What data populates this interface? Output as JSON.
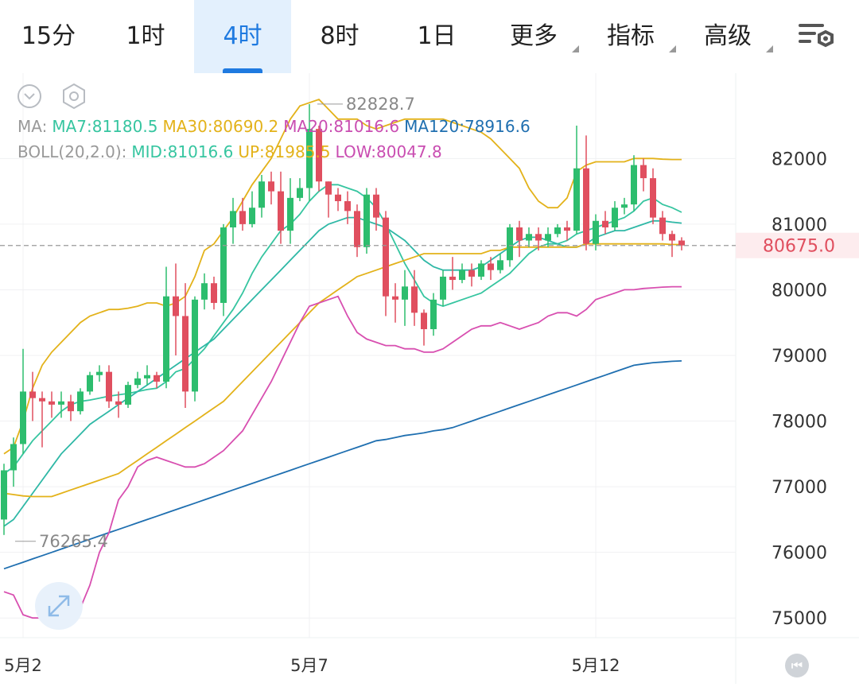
{
  "tabs": [
    {
      "label": "15分",
      "active": false,
      "dropdown": false
    },
    {
      "label": "1时",
      "active": false,
      "dropdown": false
    },
    {
      "label": "4时",
      "active": true,
      "dropdown": false
    },
    {
      "label": "8时",
      "active": false,
      "dropdown": false
    },
    {
      "label": "1日",
      "active": false,
      "dropdown": false
    },
    {
      "label": "更多",
      "active": false,
      "dropdown": true
    },
    {
      "label": "指标",
      "active": false,
      "dropdown": true
    },
    {
      "label": "高级",
      "active": false,
      "dropdown": true
    }
  ],
  "settings_icon": "chart-settings-icon",
  "legend": {
    "ma_prefix": "MA:",
    "ma7": "MA7:81180.5",
    "ma30": "MA30:80690.2",
    "ma20": "MA20:81016.6",
    "ma120": "MA120:78916.6",
    "boll_prefix": "BOLL(20,2.0):",
    "boll_mid": "MID:81016.6",
    "boll_up": "UP:81985.5",
    "boll_low": "LOW:80047.8"
  },
  "colors": {
    "up": "#2dbd6e",
    "down": "#e04f5f",
    "ma7": "#36c5a0",
    "ma30": "#e3b21a",
    "ma20": "#2fb8a6",
    "ma120": "#1f6fb0",
    "boll_low": "#d84fb0",
    "boll_up": "#e3b21a",
    "current_price_bg": "#fdecee",
    "current_price_text": "#e04f5f"
  },
  "chart_data": {
    "type": "candlestick",
    "interval": "4时",
    "ylim": [
      74700,
      83300
    ],
    "y_ticks": [
      75000,
      76000,
      77000,
      78000,
      79000,
      80000,
      81000,
      82000
    ],
    "x_ticks": [
      {
        "label": "5月2",
        "index": 2
      },
      {
        "label": "5月7",
        "index": 32
      },
      {
        "label": "5月12",
        "index": 62
      }
    ],
    "current_price": "80675.0",
    "current_price_value": 80675,
    "max_label": "82828.7",
    "max_index": 32,
    "min_label": "76265.4",
    "min_index": 0,
    "candles": [
      [
        76500,
        77250,
        76265,
        77350
      ],
      [
        77250,
        77650,
        77000,
        77750
      ],
      [
        77650,
        78450,
        77500,
        79100
      ],
      [
        78450,
        78350,
        78000,
        78750
      ],
      [
        78350,
        78300,
        77600,
        78450
      ],
      [
        78300,
        78250,
        78050,
        78450
      ],
      [
        78250,
        78300,
        78050,
        78450
      ],
      [
        78300,
        78150,
        78000,
        78400
      ],
      [
        78150,
        78450,
        78100,
        78500
      ],
      [
        78450,
        78700,
        78400,
        78750
      ],
      [
        78700,
        78750,
        78600,
        78850
      ],
      [
        78750,
        78300,
        78200,
        78850
      ],
      [
        78300,
        78250,
        78050,
        78450
      ],
      [
        78250,
        78550,
        78200,
        78600
      ],
      [
        78550,
        78650,
        78500,
        78750
      ],
      [
        78650,
        78700,
        78550,
        78850
      ],
      [
        78700,
        78600,
        78500,
        78750
      ],
      [
        78600,
        79900,
        78500,
        80350
      ],
      [
        79900,
        79600,
        79000,
        80400
      ],
      [
        79600,
        78450,
        78200,
        80100
      ],
      [
        78450,
        79850,
        78300,
        79900
      ],
      [
        79850,
        80100,
        79700,
        80250
      ],
      [
        80100,
        79800,
        79700,
        80200
      ],
      [
        79800,
        80950,
        79600,
        81000
      ],
      [
        80950,
        81200,
        80700,
        81400
      ],
      [
        81200,
        81000,
        80900,
        81400
      ],
      [
        81000,
        81250,
        80950,
        81500
      ],
      [
        81250,
        81650,
        81100,
        81750
      ],
      [
        81650,
        81500,
        81300,
        81800
      ],
      [
        81500,
        80900,
        80700,
        81800
      ],
      [
        80900,
        81400,
        80700,
        81700
      ],
      [
        81400,
        81550,
        81350,
        81700
      ],
      [
        81550,
        82450,
        81350,
        82828
      ],
      [
        82450,
        81650,
        81500,
        82500
      ],
      [
        81650,
        81450,
        81100,
        81650
      ],
      [
        81450,
        81350,
        81200,
        81550
      ],
      [
        81350,
        81200,
        81000,
        81500
      ],
      [
        81200,
        80650,
        80500,
        81300
      ],
      [
        80650,
        81450,
        80550,
        81550
      ],
      [
        81450,
        81100,
        80900,
        81550
      ],
      [
        81100,
        79900,
        79600,
        81200
      ],
      [
        79900,
        79850,
        79500,
        80100
      ],
      [
        79850,
        80050,
        79450,
        80300
      ],
      [
        80050,
        79650,
        79450,
        80300
      ],
      [
        79650,
        79400,
        79150,
        79700
      ],
      [
        79400,
        79850,
        79300,
        79950
      ],
      [
        79850,
        80200,
        79750,
        80300
      ],
      [
        80200,
        80150,
        80000,
        80500
      ],
      [
        80150,
        80300,
        80100,
        80400
      ],
      [
        80300,
        80200,
        80050,
        80400
      ],
      [
        80200,
        80400,
        80150,
        80450
      ],
      [
        80400,
        80300,
        80150,
        80500
      ],
      [
        80300,
        80450,
        80250,
        80550
      ],
      [
        80450,
        80950,
        80350,
        81000
      ],
      [
        80950,
        80750,
        80500,
        81050
      ],
      [
        80750,
        80850,
        80650,
        80950
      ],
      [
        80850,
        80750,
        80600,
        80950
      ],
      [
        80750,
        80850,
        80650,
        80950
      ],
      [
        80850,
        80950,
        80800,
        81000
      ],
      [
        80950,
        80900,
        80750,
        81050
      ],
      [
        80900,
        81850,
        80850,
        82500
      ],
      [
        81850,
        80700,
        80600,
        82350
      ],
      [
        80700,
        81050,
        80600,
        81150
      ],
      [
        81050,
        80950,
        80850,
        81200
      ],
      [
        80950,
        81250,
        80900,
        81350
      ],
      [
        81250,
        81300,
        81150,
        81400
      ],
      [
        81300,
        81900,
        81200,
        82050
      ],
      [
        81900,
        81700,
        81500,
        82000
      ],
      [
        81700,
        81100,
        81000,
        81850
      ],
      [
        81100,
        80850,
        80750,
        81200
      ],
      [
        80850,
        80750,
        80500,
        80900
      ],
      [
        80750,
        80675,
        80600,
        80800
      ]
    ],
    "series": [
      {
        "name": "MA7",
        "values": [
          77200,
          77300,
          77500,
          77700,
          77850,
          78000,
          78150,
          78250,
          78300,
          78320,
          78350,
          78380,
          78400,
          78420,
          78450,
          78480,
          78500,
          78600,
          78750,
          78800,
          78950,
          79100,
          79300,
          79500,
          79700,
          79950,
          80250,
          80500,
          80700,
          80900,
          81000,
          81150,
          81350,
          81500,
          81600,
          81600,
          81550,
          81500,
          81400,
          81250,
          81000,
          80700,
          80400,
          80150,
          79900,
          79800,
          79750,
          79800,
          79850,
          79900,
          79950,
          80050,
          80150,
          80250,
          80400,
          80550,
          80650,
          80700,
          80700,
          80750,
          80850,
          80900,
          80950,
          81000,
          81050,
          81100,
          81200,
          81350,
          81400,
          81300,
          81250,
          81180
        ]
      },
      {
        "name": "MA20",
        "values": [
          76400,
          76500,
          76700,
          76900,
          77100,
          77300,
          77500,
          77650,
          77800,
          77950,
          78050,
          78150,
          78250,
          78350,
          78450,
          78550,
          78650,
          78750,
          78850,
          78950,
          79050,
          79150,
          79250,
          79400,
          79550,
          79700,
          79850,
          80000,
          80150,
          80300,
          80450,
          80600,
          80750,
          80900,
          81000,
          81050,
          81100,
          81100,
          81050,
          81000,
          80950,
          80850,
          80750,
          80600,
          80450,
          80350,
          80300,
          80300,
          80300,
          80300,
          80350,
          80450,
          80550,
          80650,
          80750,
          80800,
          80800,
          80750,
          80700,
          80650,
          80650,
          80700,
          80800,
          80850,
          80900,
          80900,
          80950,
          81000,
          81050,
          81050,
          81030,
          81016
        ]
      },
      {
        "name": "MA30",
        "values": [
          76900,
          76880,
          76860,
          76850,
          76850,
          76850,
          76900,
          76950,
          77000,
          77050,
          77100,
          77150,
          77200,
          77300,
          77400,
          77500,
          77600,
          77700,
          77800,
          77900,
          78000,
          78100,
          78200,
          78300,
          78450,
          78600,
          78750,
          78900,
          79050,
          79200,
          79350,
          79500,
          79650,
          79800,
          79900,
          80000,
          80100,
          80200,
          80250,
          80300,
          80350,
          80400,
          80450,
          80500,
          80550,
          80550,
          80550,
          80550,
          80550,
          80550,
          80550,
          80600,
          80600,
          80650,
          80650,
          80650,
          80650,
          80650,
          80650,
          80650,
          80650,
          80700,
          80700,
          80700,
          80700,
          80700,
          80700,
          80700,
          80700,
          80700,
          80690,
          80690
        ]
      },
      {
        "name": "MA120",
        "values": [
          75750,
          75800,
          75850,
          75900,
          75950,
          76000,
          76050,
          76100,
          76150,
          76200,
          76250,
          76300,
          76350,
          76400,
          76450,
          76500,
          76550,
          76600,
          76650,
          76700,
          76750,
          76800,
          76850,
          76900,
          76950,
          77000,
          77050,
          77100,
          77150,
          77200,
          77250,
          77300,
          77350,
          77400,
          77450,
          77500,
          77550,
          77600,
          77650,
          77700,
          77720,
          77750,
          77780,
          77800,
          77820,
          77850,
          77870,
          77900,
          77950,
          78000,
          78050,
          78100,
          78150,
          78200,
          78250,
          78300,
          78350,
          78400,
          78450,
          78500,
          78550,
          78600,
          78650,
          78700,
          78750,
          78800,
          78850,
          78870,
          78890,
          78900,
          78910,
          78917
        ]
      },
      {
        "name": "BOLL UP",
        "values": [
          77500,
          77600,
          78000,
          78500,
          78850,
          79050,
          79200,
          79350,
          79500,
          79600,
          79650,
          79700,
          79700,
          79720,
          79750,
          79800,
          79800,
          79750,
          79800,
          79900,
          80200,
          80600,
          80700,
          80900,
          81100,
          81350,
          81600,
          81800,
          82000,
          82300,
          82600,
          82800,
          82850,
          82900,
          82750,
          82600,
          82600,
          82600,
          82500,
          82450,
          82500,
          82550,
          82600,
          82600,
          82600,
          82600,
          82600,
          82550,
          82500,
          82450,
          82400,
          82300,
          82150,
          82000,
          81850,
          81550,
          81350,
          81250,
          81250,
          81400,
          81800,
          81900,
          81950,
          81950,
          81950,
          81950,
          82000,
          82000,
          82000,
          81990,
          81985,
          81985
        ]
      },
      {
        "name": "BOLL LOW",
        "values": [
          75400,
          75350,
          75050,
          75000,
          75000,
          75000,
          75000,
          75050,
          75150,
          75500,
          76000,
          76300,
          76800,
          77000,
          77300,
          77400,
          77450,
          77400,
          77350,
          77300,
          77300,
          77350,
          77450,
          77550,
          77700,
          77850,
          78100,
          78350,
          78600,
          78900,
          79200,
          79500,
          79750,
          79800,
          79850,
          79900,
          79600,
          79350,
          79250,
          79200,
          79150,
          79150,
          79100,
          79100,
          79050,
          79050,
          79100,
          79200,
          79300,
          79400,
          79450,
          79450,
          79500,
          79450,
          79400,
          79450,
          79500,
          79600,
          79650,
          79650,
          79600,
          79700,
          79850,
          79900,
          79950,
          80000,
          80000,
          80020,
          80030,
          80040,
          80047,
          80047
        ]
      }
    ]
  }
}
